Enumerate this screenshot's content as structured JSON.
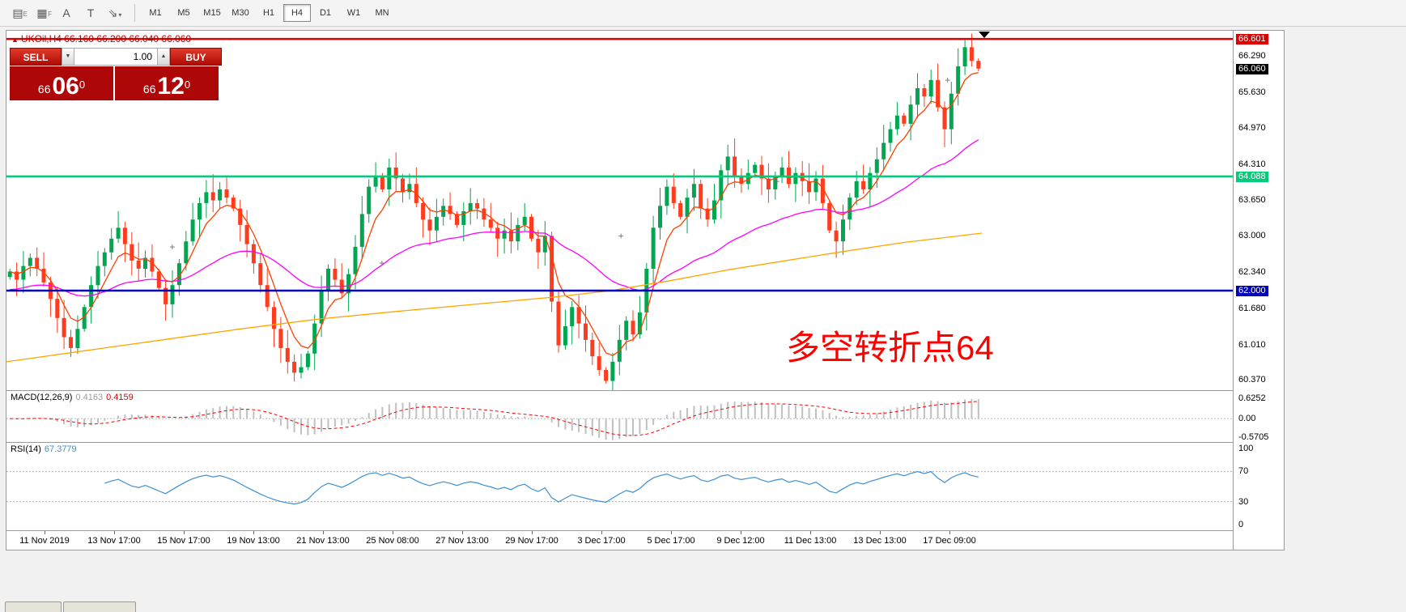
{
  "toolbar": {
    "icons": [
      {
        "name": "chart-shortcut-icon",
        "glyph": "▤",
        "sub": "E"
      },
      {
        "name": "grid-shortcut-icon",
        "glyph": "▦",
        "sub": "F"
      },
      {
        "name": "label-tool-icon",
        "glyph": "A"
      },
      {
        "name": "text-tool-icon",
        "glyph": "T"
      },
      {
        "name": "draw-tool-icon",
        "glyph": "⇘",
        "caret": "▾"
      }
    ],
    "timeframes": [
      "M1",
      "M5",
      "M15",
      "M30",
      "H1",
      "H4",
      "D1",
      "W1",
      "MN"
    ],
    "active_timeframe": "H4"
  },
  "chart": {
    "title_symbol": "UKOil,H4",
    "title_quote": "66.160 66.200 66.040 66.060",
    "annotation": "多空转折点64",
    "trade": {
      "sell_label": "SELL",
      "buy_label": "BUY",
      "qty": "1.00",
      "bid_prefix": "66",
      "bid_big": "06",
      "bid_sup": "0",
      "ask_prefix": "66",
      "ask_big": "12",
      "ask_sup": "0"
    },
    "colors": {
      "up": "#00a651",
      "down": "#ff3c1e",
      "ma_fast": "#ff4000",
      "ma_mid": "#ff00ff",
      "ma_slow": "#ffa500",
      "rsi": "#3b8fd4",
      "macd_hist": "#c0c0c0",
      "macd_signal": "#ff0000",
      "line_red": "#dd0000",
      "line_green": "#00cc7a",
      "line_blue": "#0000bb"
    },
    "price_axis": [
      {
        "v": "66.601",
        "badge": "red"
      },
      {
        "v": "66.290"
      },
      {
        "v": "66.060",
        "badge": "black"
      },
      {
        "v": "65.630"
      },
      {
        "v": "64.970"
      },
      {
        "v": "64.310"
      },
      {
        "v": "64.088",
        "badge": "green"
      },
      {
        "v": "63.650"
      },
      {
        "v": "63.000"
      },
      {
        "v": "62.340"
      },
      {
        "v": "62.000",
        "badge": "blue"
      },
      {
        "v": "61.680"
      },
      {
        "v": "61.010"
      },
      {
        "v": "60.370"
      }
    ],
    "hlines": [
      {
        "price": 66.601,
        "color": "#dd0000",
        "w": 2.5
      },
      {
        "price": 64.088,
        "color": "#00cc7a",
        "w": 2.5
      },
      {
        "price": 62.0,
        "color": "#0000bb",
        "w": 2.5
      }
    ]
  },
  "chart_data": {
    "type": "candlestick",
    "symbol": "UKOil",
    "timeframe": "H4",
    "y_range": [
      60.18,
      66.75
    ],
    "closes": [
      62.35,
      62.2,
      62.45,
      62.6,
      62.4,
      62.15,
      61.85,
      61.5,
      61.15,
      60.95,
      61.3,
      61.7,
      62.1,
      62.45,
      62.7,
      62.95,
      63.15,
      62.85,
      62.55,
      62.4,
      62.6,
      62.35,
      62.05,
      61.75,
      62.1,
      62.5,
      62.9,
      63.3,
      63.6,
      63.8,
      63.65,
      63.85,
      63.7,
      63.5,
      63.2,
      62.85,
      62.5,
      62.1,
      61.7,
      61.3,
      60.95,
      60.7,
      60.5,
      60.6,
      60.85,
      61.4,
      62.0,
      62.4,
      62.2,
      61.95,
      62.3,
      62.8,
      63.4,
      63.9,
      64.1,
      63.85,
      64.25,
      64.05,
      63.8,
      63.95,
      63.6,
      63.3,
      63.1,
      63.35,
      63.55,
      63.4,
      63.2,
      63.45,
      63.6,
      63.5,
      63.3,
      63.15,
      62.95,
      63.1,
      62.9,
      63.2,
      63.35,
      62.95,
      62.7,
      63.0,
      61.8,
      61.0,
      61.35,
      61.7,
      61.4,
      61.1,
      60.8,
      60.55,
      60.35,
      60.7,
      61.1,
      61.45,
      61.2,
      61.6,
      62.4,
      63.15,
      63.55,
      63.9,
      63.6,
      63.35,
      63.7,
      63.95,
      63.5,
      63.3,
      63.65,
      64.2,
      64.45,
      64.1,
      63.95,
      64.15,
      64.3,
      64.05,
      63.85,
      64.1,
      64.25,
      63.95,
      64.15,
      64.0,
      63.8,
      64.05,
      63.6,
      63.1,
      62.9,
      63.3,
      63.7,
      64.0,
      63.85,
      64.15,
      64.4,
      64.7,
      64.95,
      65.2,
      65.05,
      65.4,
      65.7,
      65.55,
      65.85,
      65.35,
      64.95,
      65.6,
      66.1,
      66.45,
      66.2,
      66.06
    ],
    "ma_orange_points": [
      [
        0.0,
        60.7
      ],
      [
        0.08,
        60.9
      ],
      [
        0.16,
        61.1
      ],
      [
        0.24,
        61.3
      ],
      [
        0.32,
        61.48
      ],
      [
        0.4,
        61.62
      ],
      [
        0.48,
        61.75
      ],
      [
        0.56,
        61.88
      ],
      [
        0.62,
        62.0
      ],
      [
        0.68,
        62.18
      ],
      [
        0.74,
        62.38
      ],
      [
        0.8,
        62.55
      ],
      [
        0.86,
        62.72
      ],
      [
        0.92,
        62.88
      ],
      [
        1.0,
        63.05
      ]
    ],
    "plus_markers": [
      [
        0.17,
        62.8
      ],
      [
        0.385,
        62.5
      ],
      [
        0.63,
        63.0
      ],
      [
        0.79,
        64.0
      ],
      [
        0.965,
        65.85
      ]
    ],
    "macd": {
      "label": "MACD(12,26,9)",
      "v1": "0.4163",
      "v2": "0.4159",
      "axis": [
        "0.6252",
        "0.00",
        "-0.5705"
      ],
      "range": [
        -0.72,
        0.85
      ]
    },
    "rsi": {
      "label": "RSI(14)",
      "value": "67.3779",
      "axis": [
        "100",
        "70",
        "30",
        "0"
      ],
      "levels": [
        70,
        30
      ],
      "range": [
        0,
        100
      ]
    },
    "x_labels": [
      "11 Nov 2019",
      "13 Nov 17:00",
      "15 Nov 17:00",
      "19 Nov 13:00",
      "21 Nov 13:00",
      "25 Nov 08:00",
      "27 Nov 13:00",
      "29 Nov 17:00",
      "3 Dec 17:00",
      "5 Dec 17:00",
      "9 Dec 12:00",
      "11 Dec 13:00",
      "13 Dec 13:00",
      "17 Dec 09:00"
    ]
  }
}
